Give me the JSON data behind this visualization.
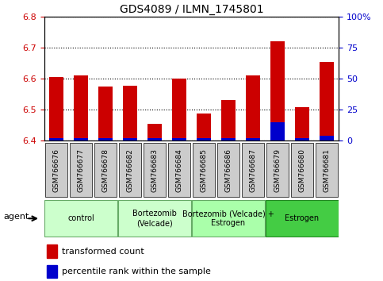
{
  "title": "GDS4089 / ILMN_1745801",
  "samples": [
    "GSM766676",
    "GSM766677",
    "GSM766678",
    "GSM766682",
    "GSM766683",
    "GSM766684",
    "GSM766685",
    "GSM766686",
    "GSM766687",
    "GSM766679",
    "GSM766680",
    "GSM766681"
  ],
  "red_values": [
    6.605,
    6.61,
    6.575,
    6.578,
    6.455,
    6.6,
    6.488,
    6.53,
    6.61,
    6.72,
    6.508,
    6.655
  ],
  "blue_pct": [
    2,
    2,
    2,
    2,
    2,
    2,
    2,
    2,
    2,
    15,
    2,
    4
  ],
  "ylim_left": [
    6.4,
    6.8
  ],
  "ylim_right": [
    0,
    100
  ],
  "yticks_left": [
    6.4,
    6.5,
    6.6,
    6.7,
    6.8
  ],
  "yticks_right": [
    0,
    25,
    50,
    75,
    100
  ],
  "groups": [
    {
      "label": "control",
      "start": 0,
      "end": 3,
      "color": "#ccffcc",
      "border": "#66aa66"
    },
    {
      "label": "Bortezomib\n(Velcade)",
      "start": 3,
      "end": 6,
      "color": "#ccffcc",
      "border": "#66aa66"
    },
    {
      "label": "Bortezomib (Velcade) +\nEstrogen",
      "start": 6,
      "end": 9,
      "color": "#aaffaa",
      "border": "#66aa66"
    },
    {
      "label": "Estrogen",
      "start": 9,
      "end": 12,
      "color": "#44cc44",
      "border": "#228822"
    }
  ],
  "bar_color": "#cc0000",
  "blue_color": "#0000cc",
  "baseline": 6.4,
  "legend_items": [
    {
      "color": "#cc0000",
      "label": "transformed count"
    },
    {
      "color": "#0000cc",
      "label": "percentile rank within the sample"
    }
  ],
  "agent_label": "agent",
  "background_color": "#ffffff",
  "tick_color_left": "#cc0000",
  "tick_color_right": "#0000cc",
  "sample_box_color": "#cccccc",
  "title_fontsize": 10
}
